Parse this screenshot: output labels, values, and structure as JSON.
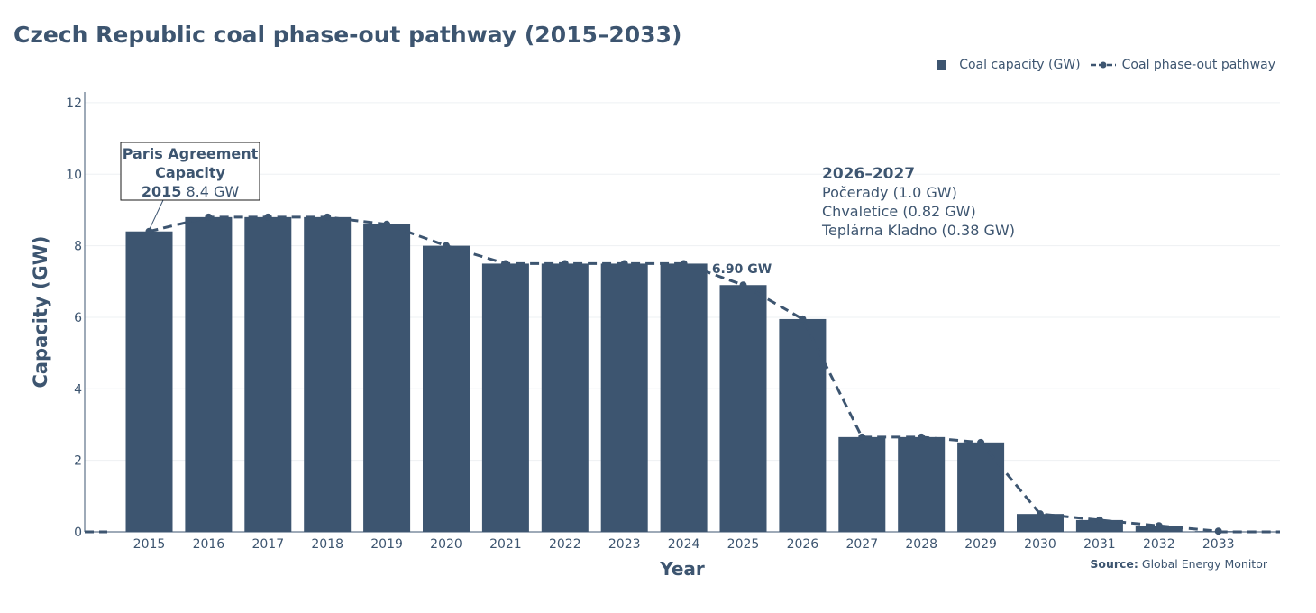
{
  "title": "Czech Republic coal phase-out pathway (2015–2033)",
  "legend": {
    "bar_label": "Coal capacity (GW)",
    "line_label": "Coal phase-out pathway"
  },
  "source": {
    "label": "Source:",
    "text": "Global Energy Monitor"
  },
  "colors": {
    "primary": "#3d5570",
    "grid": "#eef0f3"
  },
  "annotations": {
    "paris": {
      "line1": "Paris Agreement",
      "line2": "Capacity",
      "year": "2015",
      "value": "8.4 GW"
    },
    "closures": {
      "heading": "2026–2027",
      "items": [
        "Počerady (1.0 GW)",
        "Chvaletice (0.82 GW)",
        "Teplárna Kladno (0.38 GW)"
      ]
    },
    "point_label": "6.90 GW"
  },
  "chart_data": {
    "type": "bar",
    "title": "Czech Republic coal phase-out pathway (2015–2033)",
    "xlabel": "Year",
    "ylabel": "Capacity (GW)",
    "ylim": [
      0,
      12.3
    ],
    "yticks": [
      0,
      2,
      4,
      6,
      8,
      10,
      12
    ],
    "categories": [
      "2015",
      "2016",
      "2017",
      "2018",
      "2019",
      "2020",
      "2021",
      "2022",
      "2023",
      "2024",
      "2025",
      "2026",
      "2027",
      "2028",
      "2029",
      "2030",
      "2031",
      "2032",
      "2033"
    ],
    "series": [
      {
        "name": "Coal capacity (GW)",
        "type": "bar",
        "values": [
          8.4,
          8.8,
          8.8,
          8.8,
          8.6,
          8.0,
          7.5,
          7.5,
          7.5,
          7.5,
          6.9,
          5.95,
          2.65,
          2.65,
          2.5,
          0.5,
          0.33,
          0.17,
          0.02
        ]
      },
      {
        "name": "Coal phase-out pathway",
        "type": "line",
        "style": "dashed",
        "values": [
          8.4,
          8.8,
          8.8,
          8.8,
          8.6,
          8.0,
          7.5,
          7.5,
          7.5,
          7.5,
          6.9,
          5.95,
          2.65,
          2.65,
          2.5,
          0.5,
          0.33,
          0.17,
          0.02
        ]
      }
    ]
  }
}
